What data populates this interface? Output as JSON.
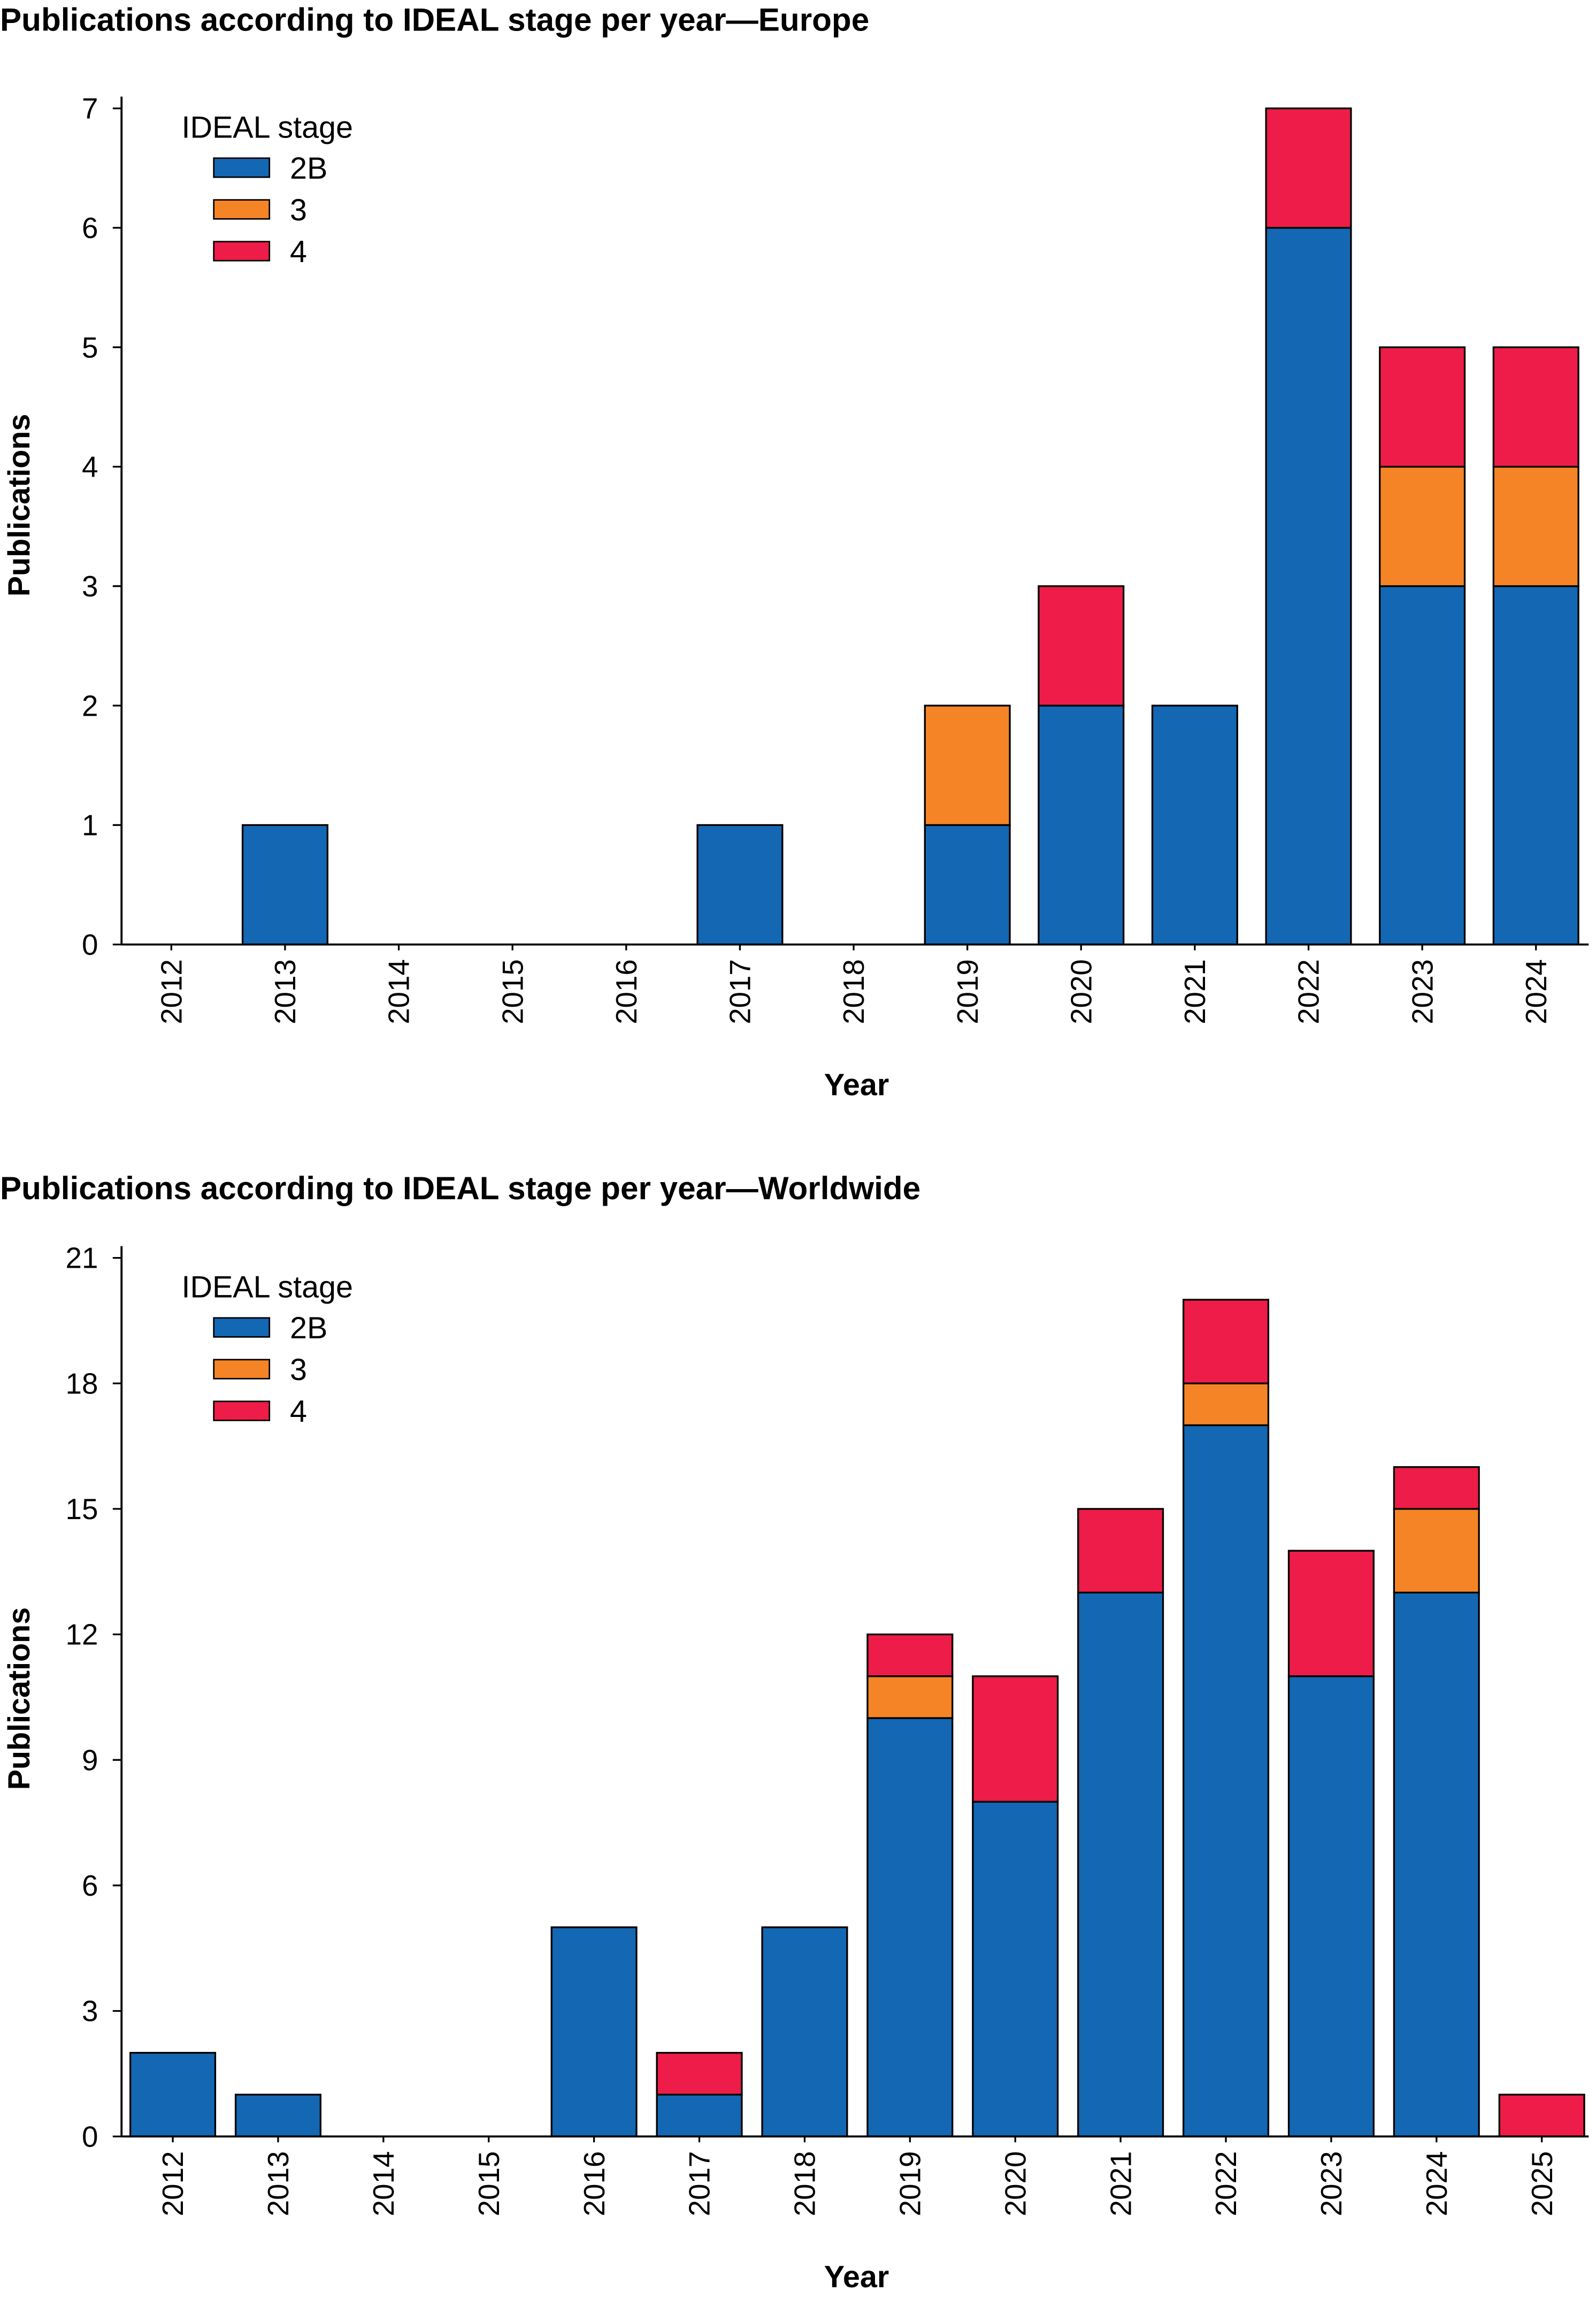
{
  "colors": {
    "2B": "#1467b3",
    "3": "#f58426",
    "4": "#ee1c48"
  },
  "chart_data": [
    {
      "type": "bar",
      "stacked": true,
      "title": "Publications according to IDEAL stage per year—Europe",
      "xlabel": "Year",
      "ylabel": "Publications",
      "ylim": [
        0,
        7
      ],
      "yticks": [
        "0",
        "1",
        "2",
        "3",
        "4",
        "5",
        "6",
        "7"
      ],
      "legend_title": "IDEAL stage",
      "legend_position": "top-left",
      "categories": [
        "2012",
        "2013",
        "2014",
        "2015",
        "2016",
        "2017",
        "2018",
        "2019",
        "2020",
        "2021",
        "2022",
        "2023",
        "2024"
      ],
      "series": [
        {
          "name": "2B",
          "values": [
            0,
            1,
            0,
            0,
            0,
            1,
            0,
            1,
            2,
            2,
            6,
            3,
            3
          ]
        },
        {
          "name": "3",
          "values": [
            0,
            0,
            0,
            0,
            0,
            0,
            0,
            1,
            0,
            0,
            0,
            1,
            1
          ]
        },
        {
          "name": "4",
          "values": [
            0,
            0,
            0,
            0,
            0,
            0,
            0,
            0,
            1,
            0,
            1,
            1,
            1
          ]
        }
      ]
    },
    {
      "type": "bar",
      "stacked": true,
      "title": "Publications according to IDEAL stage per year—Worldwide",
      "xlabel": "Year",
      "ylabel": "Publications",
      "ylim": [
        0,
        21
      ],
      "yticks": [
        "0",
        "3",
        "6",
        "9",
        "12",
        "15",
        "18",
        "21"
      ],
      "legend_title": "IDEAL stage",
      "legend_position": "top-left",
      "categories": [
        "2012",
        "2013",
        "2014",
        "2015",
        "2016",
        "2017",
        "2018",
        "2019",
        "2020",
        "2021",
        "2022",
        "2023",
        "2024",
        "2025"
      ],
      "series": [
        {
          "name": "2B",
          "values": [
            2,
            1,
            0,
            0,
            5,
            1,
            5,
            10,
            8,
            13,
            17,
            11,
            13,
            0
          ]
        },
        {
          "name": "3",
          "values": [
            0,
            0,
            0,
            0,
            0,
            0,
            0,
            1,
            0,
            0,
            1,
            0,
            2,
            0
          ]
        },
        {
          "name": "4",
          "values": [
            0,
            0,
            0,
            0,
            0,
            1,
            0,
            1,
            3,
            2,
            2,
            3,
            1,
            1
          ]
        }
      ]
    }
  ]
}
